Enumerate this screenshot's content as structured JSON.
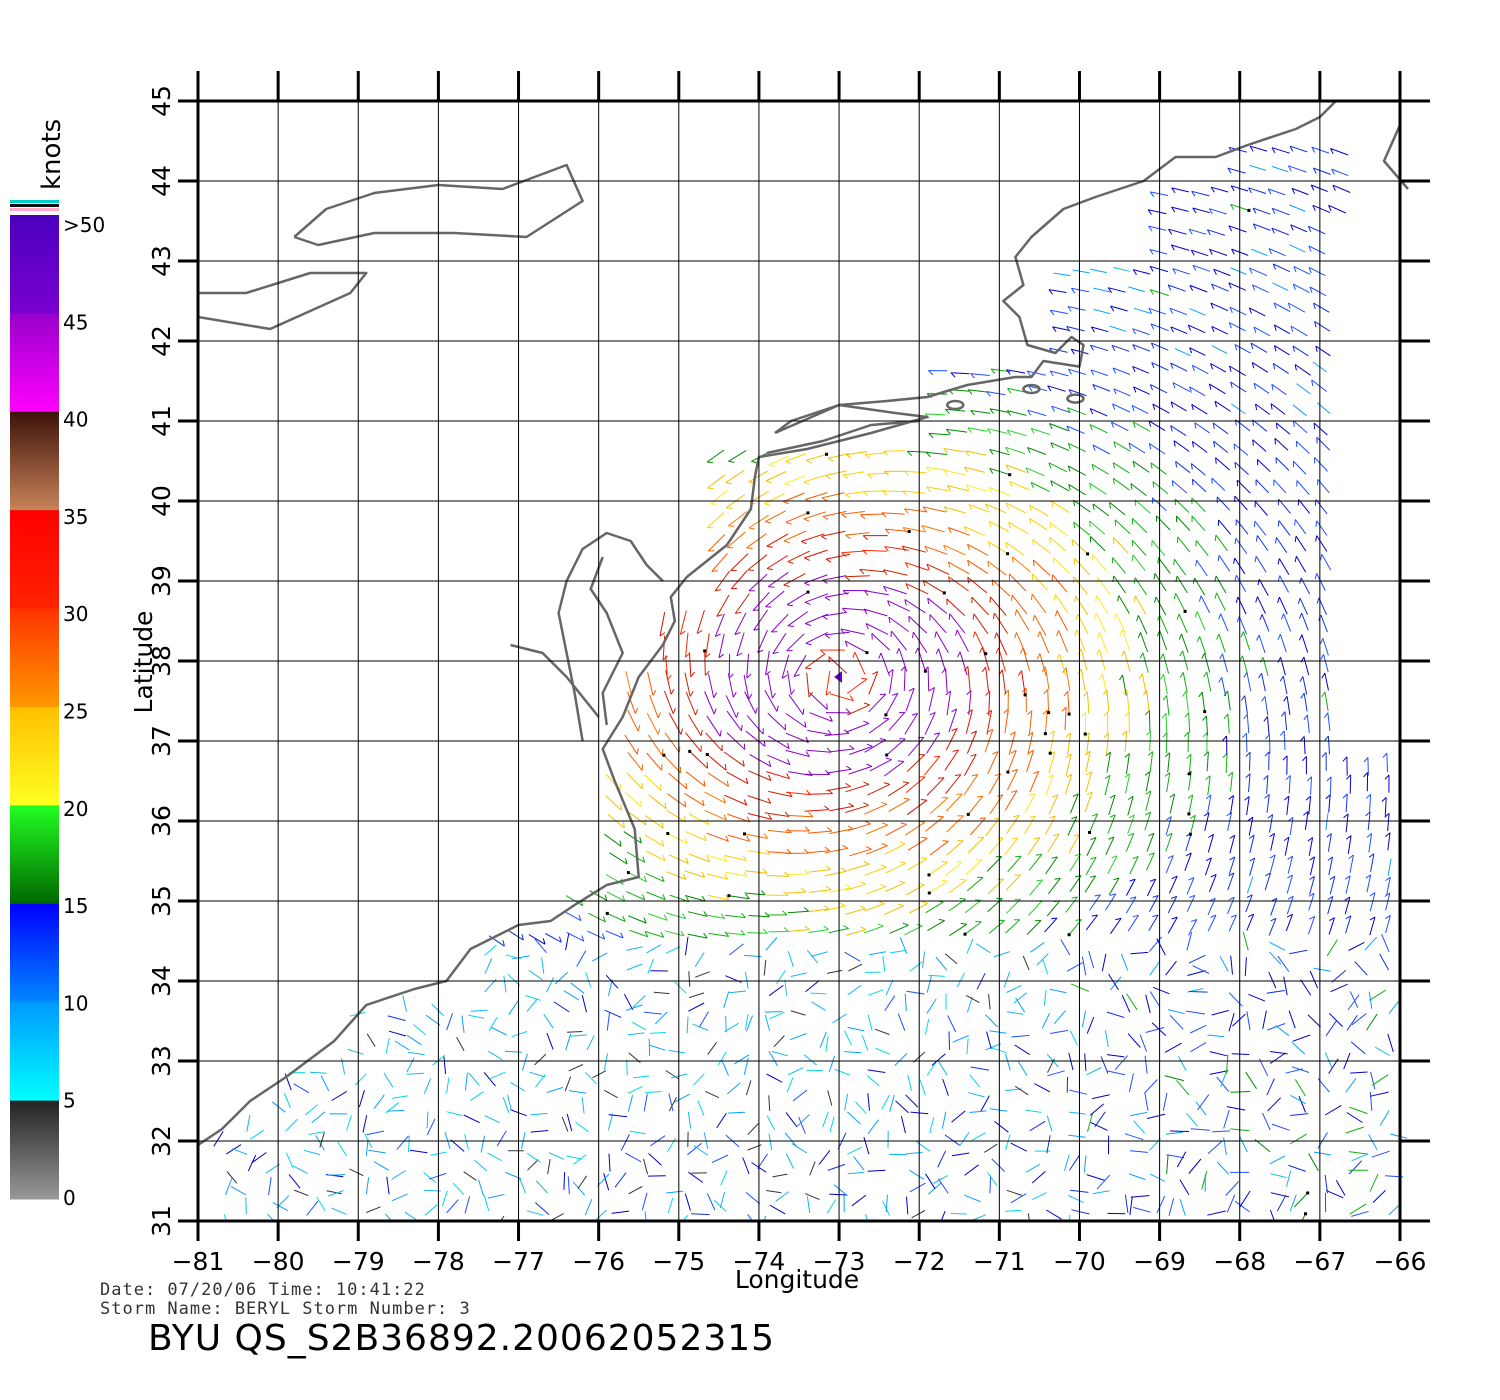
{
  "map": {
    "title": "",
    "xlabel": "Longitude",
    "ylabel": "Latitude",
    "lon_range": [
      -81,
      -66
    ],
    "lat_range": [
      31,
      45
    ],
    "lon_ticks": [
      "−81",
      "−80",
      "−79",
      "−78",
      "−77",
      "−76",
      "−75",
      "−74",
      "−73",
      "−72",
      "−71",
      "−70",
      "−69",
      "−68",
      "−67",
      "−66"
    ],
    "lat_ticks": [
      "31",
      "32",
      "33",
      "34",
      "35",
      "36",
      "37",
      "38",
      "39",
      "40",
      "41",
      "42",
      "43",
      "44",
      "45"
    ],
    "grid": true,
    "storm_center": {
      "lon": -73.0,
      "lat": 37.8
    },
    "coastline_color": "#666666"
  },
  "colorbar": {
    "unit_label": "knots",
    "labels": [
      ">50",
      "45",
      "40",
      "35",
      "30",
      "25",
      "20",
      "15",
      "10",
      "5",
      "0"
    ],
    "segments": [
      {
        "range": [
          45,
          50
        ],
        "top": "#4b00c0",
        "bottom": "#7a00d0"
      },
      {
        "range": [
          40,
          45
        ],
        "top": "#9900cc",
        "bottom": "#ff00ff"
      },
      {
        "range": [
          35,
          40
        ],
        "top": "#3d1208",
        "bottom": "#c8845a"
      },
      {
        "range": [
          30,
          35
        ],
        "top": "#ff0000",
        "bottom": "#ff2200"
      },
      {
        "range": [
          25,
          30
        ],
        "top": "#ff3300",
        "bottom": "#ff9900"
      },
      {
        "range": [
          20,
          25
        ],
        "top": "#ffc000",
        "bottom": "#ffff22"
      },
      {
        "range": [
          15,
          20
        ],
        "top": "#22ff22",
        "bottom": "#006600"
      },
      {
        "range": [
          10,
          15
        ],
        "top": "#0000ff",
        "bottom": "#0088ff"
      },
      {
        "range": [
          5,
          10
        ],
        "top": "#0099ff",
        "bottom": "#00ffff"
      },
      {
        "range": [
          0,
          5
        ],
        "top": "#222222",
        "bottom": "#999999"
      }
    ],
    "cap_colors": [
      "#00cccc",
      "#111111",
      "#ffaacc"
    ]
  },
  "footer": {
    "date_line": "Date: 07/20/06  Time: 10:41:22",
    "storm_line": "Storm Name: BERYL  Storm Number: 3",
    "id_line": "BYU QS_S2B36892.20062052315"
  }
}
